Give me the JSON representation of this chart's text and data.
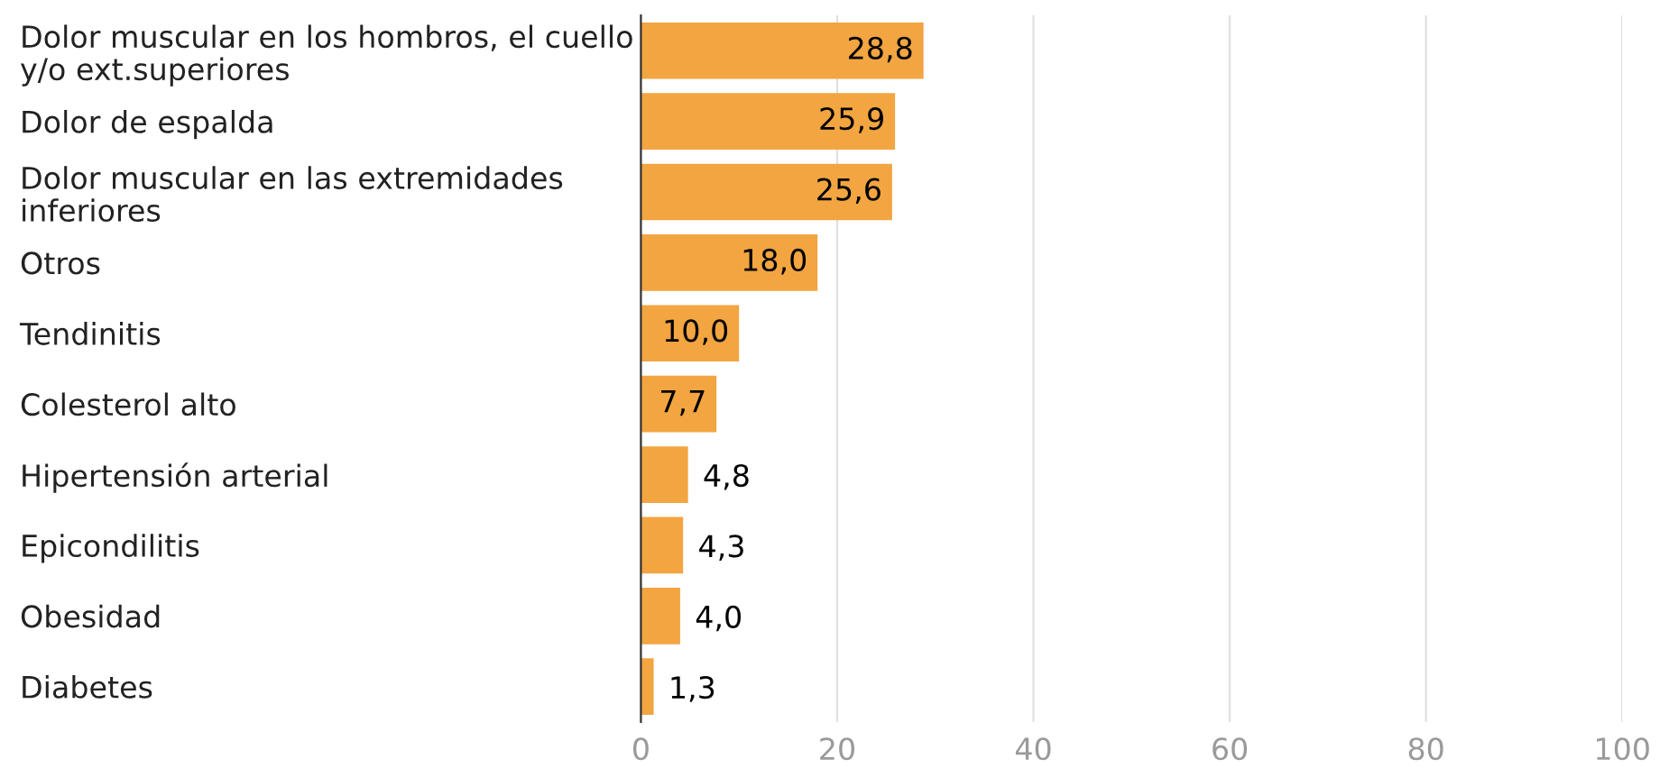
{
  "chart_data": {
    "type": "bar",
    "orientation": "horizontal",
    "categories": [
      "Dolor muscular en los hombros, el cuello\ny/o ext.superiores",
      "Dolor de espalda",
      "Dolor muscular en las extremidades\ninferiores",
      "Otros",
      "Tendinitis",
      "Colesterol alto",
      "Hipertensión arterial",
      "Epicondilitis",
      "Obesidad",
      "Diabetes"
    ],
    "values": [
      28.8,
      25.9,
      25.6,
      18.0,
      10.0,
      7.7,
      4.8,
      4.3,
      4.0,
      1.3
    ],
    "value_labels": [
      "28,8",
      "25,9",
      "25,6",
      "18,0",
      "10,0",
      "7,7",
      "4,8",
      "4,3",
      "4,0",
      "1,3"
    ],
    "color": "#f2a541",
    "xlim": [
      0,
      100
    ],
    "xticks": [
      0,
      20,
      40,
      60,
      80,
      100
    ],
    "grid": "x"
  }
}
